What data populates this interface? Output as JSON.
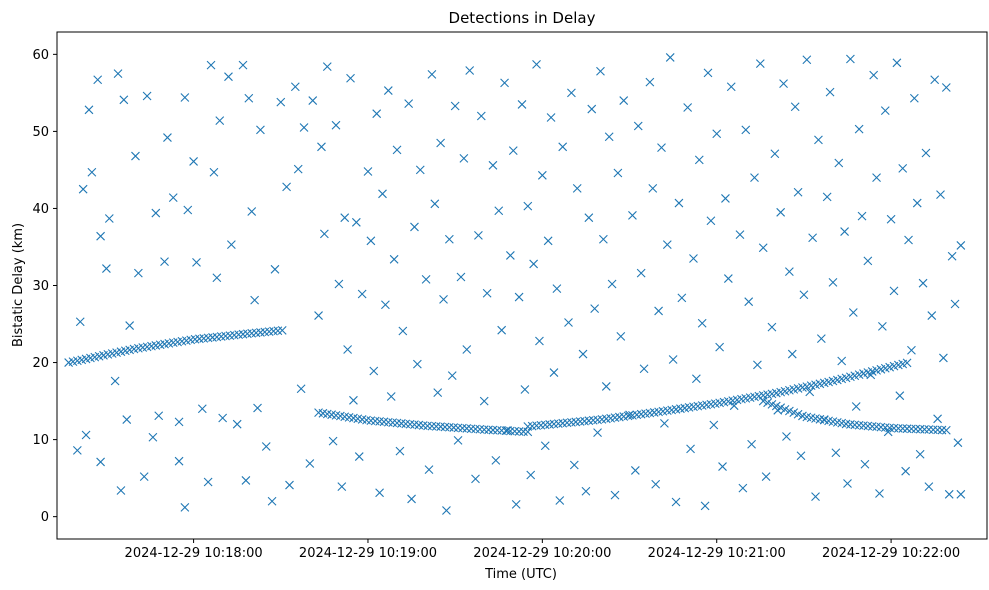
{
  "chart_data": {
    "type": "scatter",
    "title": "Detections in Delay",
    "xlabel": "Time (UTC)",
    "ylabel": "Bistatic Delay (km)",
    "marker": "x",
    "color": "#1f77b4",
    "grid": false,
    "x_ticks": [
      "2024-12-29 10:18:00",
      "2024-12-29 10:19:00",
      "2024-12-29 10:20:00",
      "2024-12-29 10:21:00",
      "2024-12-29 10:22:00"
    ],
    "y_ticks": [
      0,
      10,
      20,
      30,
      40,
      50,
      60
    ],
    "xlim": [
      "2024-12-29 10:17:13",
      "2024-12-29 10:22:33"
    ],
    "ylim": [
      -2.9,
      62.9
    ],
    "tracks": [
      {
        "x": [
          "2024-12-29 10:17:17",
          "2024-12-29 10:17:40",
          "2024-12-29 10:18:00",
          "2024-12-29 10:18:20",
          "2024-12-29 10:18:31"
        ],
        "y": [
          20.0,
          21.8,
          23.0,
          23.8,
          24.2
        ]
      },
      {
        "x": [
          "2024-12-29 10:18:43",
          "2024-12-29 10:19:00",
          "2024-12-29 10:19:20",
          "2024-12-29 10:19:40",
          "2024-12-29 10:19:55"
        ],
        "y": [
          13.5,
          12.5,
          11.8,
          11.3,
          11.0
        ]
      },
      {
        "x": [
          "2024-12-29 10:19:55",
          "2024-12-29 10:20:20",
          "2024-12-29 10:20:40",
          "2024-12-29 10:21:00",
          "2024-12-29 10:21:20",
          "2024-12-29 10:21:40",
          "2024-12-29 10:22:06"
        ],
        "y": [
          11.7,
          12.6,
          13.6,
          14.7,
          16.0,
          17.6,
          20.0
        ]
      },
      {
        "x": [
          "2024-12-29 10:21:16",
          "2024-12-29 10:21:30",
          "2024-12-29 10:21:45",
          "2024-12-29 10:22:00",
          "2024-12-29 10:22:20"
        ],
        "y": [
          15.0,
          13.0,
          12.0,
          11.5,
          11.2
        ]
      }
    ],
    "noise_points": [
      [
        "2024-12-29 10:17:20",
        8.6
      ],
      [
        "2024-12-29 10:17:21",
        25.3
      ],
      [
        "2024-12-29 10:17:22",
        42.5
      ],
      [
        "2024-12-29 10:17:23",
        10.6
      ],
      [
        "2024-12-29 10:17:24",
        52.8
      ],
      [
        "2024-12-29 10:17:25",
        44.7
      ],
      [
        "2024-12-29 10:17:27",
        56.7
      ],
      [
        "2024-12-29 10:17:28",
        36.4
      ],
      [
        "2024-12-29 10:17:28",
        7.1
      ],
      [
        "2024-12-29 10:17:30",
        32.2
      ],
      [
        "2024-12-29 10:17:31",
        38.7
      ],
      [
        "2024-12-29 10:17:33",
        17.6
      ],
      [
        "2024-12-29 10:17:34",
        57.5
      ],
      [
        "2024-12-29 10:17:35",
        3.4
      ],
      [
        "2024-12-29 10:17:36",
        54.1
      ],
      [
        "2024-12-29 10:17:37",
        12.6
      ],
      [
        "2024-12-29 10:17:38",
        24.8
      ],
      [
        "2024-12-29 10:17:40",
        46.8
      ],
      [
        "2024-12-29 10:17:41",
        31.6
      ],
      [
        "2024-12-29 10:17:43",
        5.2
      ],
      [
        "2024-12-29 10:17:44",
        54.6
      ],
      [
        "2024-12-29 10:17:46",
        10.3
      ],
      [
        "2024-12-29 10:17:47",
        39.4
      ],
      [
        "2024-12-29 10:17:48",
        13.1
      ],
      [
        "2024-12-29 10:17:50",
        33.1
      ],
      [
        "2024-12-29 10:17:51",
        49.2
      ],
      [
        "2024-12-29 10:17:53",
        41.4
      ],
      [
        "2024-12-29 10:17:55",
        12.3
      ],
      [
        "2024-12-29 10:17:55",
        7.2
      ],
      [
        "2024-12-29 10:17:57",
        1.2
      ],
      [
        "2024-12-29 10:17:57",
        54.4
      ],
      [
        "2024-12-29 10:17:58",
        39.8
      ],
      [
        "2024-12-29 10:18:00",
        46.1
      ],
      [
        "2024-12-29 10:18:01",
        33.0
      ],
      [
        "2024-12-29 10:18:03",
        14.0
      ],
      [
        "2024-12-29 10:18:05",
        4.5
      ],
      [
        "2024-12-29 10:18:06",
        58.6
      ],
      [
        "2024-12-29 10:18:07",
        44.7
      ],
      [
        "2024-12-29 10:18:08",
        31.0
      ],
      [
        "2024-12-29 10:18:09",
        51.4
      ],
      [
        "2024-12-29 10:18:10",
        12.8
      ],
      [
        "2024-12-29 10:18:12",
        57.1
      ],
      [
        "2024-12-29 10:18:13",
        35.3
      ],
      [
        "2024-12-29 10:18:15",
        12.0
      ],
      [
        "2024-12-29 10:18:17",
        58.6
      ],
      [
        "2024-12-29 10:18:18",
        4.7
      ],
      [
        "2024-12-29 10:18:19",
        54.3
      ],
      [
        "2024-12-29 10:18:20",
        39.6
      ],
      [
        "2024-12-29 10:18:21",
        28.1
      ],
      [
        "2024-12-29 10:18:22",
        14.1
      ],
      [
        "2024-12-29 10:18:23",
        50.2
      ],
      [
        "2024-12-29 10:18:25",
        9.1
      ],
      [
        "2024-12-29 10:18:27",
        2.0
      ],
      [
        "2024-12-29 10:18:28",
        32.1
      ],
      [
        "2024-12-29 10:18:30",
        53.8
      ],
      [
        "2024-12-29 10:18:32",
        42.8
      ],
      [
        "2024-12-29 10:18:33",
        4.1
      ],
      [
        "2024-12-29 10:18:35",
        55.8
      ],
      [
        "2024-12-29 10:18:36",
        45.1
      ],
      [
        "2024-12-29 10:18:37",
        16.6
      ],
      [
        "2024-12-29 10:18:38",
        50.5
      ],
      [
        "2024-12-29 10:18:40",
        6.9
      ],
      [
        "2024-12-29 10:18:41",
        54.0
      ],
      [
        "2024-12-29 10:18:43",
        26.1
      ],
      [
        "2024-12-29 10:18:44",
        48.0
      ],
      [
        "2024-12-29 10:18:45",
        36.7
      ],
      [
        "2024-12-29 10:18:46",
        58.4
      ],
      [
        "2024-12-29 10:18:48",
        9.8
      ],
      [
        "2024-12-29 10:18:49",
        50.8
      ],
      [
        "2024-12-29 10:18:50",
        30.2
      ],
      [
        "2024-12-29 10:18:51",
        3.9
      ],
      [
        "2024-12-29 10:18:52",
        38.8
      ],
      [
        "2024-12-29 10:18:53",
        21.7
      ],
      [
        "2024-12-29 10:18:54",
        56.9
      ],
      [
        "2024-12-29 10:18:55",
        15.1
      ],
      [
        "2024-12-29 10:18:56",
        38.2
      ],
      [
        "2024-12-29 10:18:57",
        7.8
      ],
      [
        "2024-12-29 10:18:58",
        28.9
      ],
      [
        "2024-12-29 10:19:00",
        44.8
      ],
      [
        "2024-12-29 10:19:01",
        35.8
      ],
      [
        "2024-12-29 10:19:02",
        18.9
      ],
      [
        "2024-12-29 10:19:03",
        52.3
      ],
      [
        "2024-12-29 10:19:04",
        3.1
      ],
      [
        "2024-12-29 10:19:05",
        41.9
      ],
      [
        "2024-12-29 10:19:06",
        27.5
      ],
      [
        "2024-12-29 10:19:07",
        55.3
      ],
      [
        "2024-12-29 10:19:08",
        15.6
      ],
      [
        "2024-12-29 10:19:09",
        33.4
      ],
      [
        "2024-12-29 10:19:10",
        47.6
      ],
      [
        "2024-12-29 10:19:11",
        8.5
      ],
      [
        "2024-12-29 10:19:12",
        24.1
      ],
      [
        "2024-12-29 10:19:14",
        53.6
      ],
      [
        "2024-12-29 10:19:15",
        2.3
      ],
      [
        "2024-12-29 10:19:16",
        37.6
      ],
      [
        "2024-12-29 10:19:17",
        19.8
      ],
      [
        "2024-12-29 10:19:18",
        45.0
      ],
      [
        "2024-12-29 10:19:20",
        30.8
      ],
      [
        "2024-12-29 10:19:21",
        6.1
      ],
      [
        "2024-12-29 10:19:22",
        57.4
      ],
      [
        "2024-12-29 10:19:23",
        40.6
      ],
      [
        "2024-12-29 10:19:24",
        16.1
      ],
      [
        "2024-12-29 10:19:25",
        48.5
      ],
      [
        "2024-12-29 10:19:26",
        28.2
      ],
      [
        "2024-12-29 10:19:27",
        0.8
      ],
      [
        "2024-12-29 10:19:28",
        36.0
      ],
      [
        "2024-12-29 10:19:29",
        18.3
      ],
      [
        "2024-12-29 10:19:30",
        53.3
      ],
      [
        "2024-12-29 10:19:31",
        9.9
      ],
      [
        "2024-12-29 10:19:32",
        31.1
      ],
      [
        "2024-12-29 10:19:33",
        46.5
      ],
      [
        "2024-12-29 10:19:34",
        21.7
      ],
      [
        "2024-12-29 10:19:35",
        57.9
      ],
      [
        "2024-12-29 10:19:37",
        4.9
      ],
      [
        "2024-12-29 10:19:38",
        36.5
      ],
      [
        "2024-12-29 10:19:39",
        52.0
      ],
      [
        "2024-12-29 10:19:40",
        15.0
      ],
      [
        "2024-12-29 10:19:41",
        29.0
      ],
      [
        "2024-12-29 10:19:43",
        45.6
      ],
      [
        "2024-12-29 10:19:44",
        7.3
      ],
      [
        "2024-12-29 10:19:45",
        39.7
      ],
      [
        "2024-12-29 10:19:46",
        24.2
      ],
      [
        "2024-12-29 10:19:47",
        56.3
      ],
      [
        "2024-12-29 10:19:48",
        11.2
      ],
      [
        "2024-12-29 10:19:49",
        33.9
      ],
      [
        "2024-12-29 10:19:50",
        47.5
      ],
      [
        "2024-12-29 10:19:51",
        1.6
      ],
      [
        "2024-12-29 10:19:52",
        28.5
      ],
      [
        "2024-12-29 10:19:53",
        53.5
      ],
      [
        "2024-12-29 10:19:54",
        16.5
      ],
      [
        "2024-12-29 10:19:55",
        40.3
      ],
      [
        "2024-12-29 10:19:56",
        5.4
      ],
      [
        "2024-12-29 10:19:57",
        32.8
      ],
      [
        "2024-12-29 10:19:58",
        58.7
      ],
      [
        "2024-12-29 10:19:59",
        22.8
      ],
      [
        "2024-12-29 10:20:00",
        44.3
      ],
      [
        "2024-12-29 10:20:01",
        9.2
      ],
      [
        "2024-12-29 10:20:02",
        35.8
      ],
      [
        "2024-12-29 10:20:03",
        51.8
      ],
      [
        "2024-12-29 10:20:04",
        18.7
      ],
      [
        "2024-12-29 10:20:05",
        29.6
      ],
      [
        "2024-12-29 10:20:06",
        2.1
      ],
      [
        "2024-12-29 10:20:07",
        48.0
      ],
      [
        "2024-12-29 10:20:09",
        25.2
      ],
      [
        "2024-12-29 10:20:10",
        55.0
      ],
      [
        "2024-12-29 10:20:11",
        6.7
      ],
      [
        "2024-12-29 10:20:12",
        42.6
      ],
      [
        "2024-12-29 10:20:14",
        21.1
      ],
      [
        "2024-12-29 10:20:15",
        3.3
      ],
      [
        "2024-12-29 10:20:16",
        38.8
      ],
      [
        "2024-12-29 10:20:17",
        52.9
      ],
      [
        "2024-12-29 10:20:18",
        27.0
      ],
      [
        "2024-12-29 10:20:19",
        10.9
      ],
      [
        "2024-12-29 10:20:20",
        57.8
      ],
      [
        "2024-12-29 10:20:21",
        36.0
      ],
      [
        "2024-12-29 10:20:22",
        16.9
      ],
      [
        "2024-12-29 10:20:23",
        49.3
      ],
      [
        "2024-12-29 10:20:24",
        30.2
      ],
      [
        "2024-12-29 10:20:25",
        2.8
      ],
      [
        "2024-12-29 10:20:26",
        44.6
      ],
      [
        "2024-12-29 10:20:27",
        23.4
      ],
      [
        "2024-12-29 10:20:28",
        54.0
      ],
      [
        "2024-12-29 10:20:30",
        13.2
      ],
      [
        "2024-12-29 10:20:31",
        39.1
      ],
      [
        "2024-12-29 10:20:32",
        6.0
      ],
      [
        "2024-12-29 10:20:33",
        50.7
      ],
      [
        "2024-12-29 10:20:34",
        31.6
      ],
      [
        "2024-12-29 10:20:35",
        19.2
      ],
      [
        "2024-12-29 10:20:37",
        56.4
      ],
      [
        "2024-12-29 10:20:38",
        42.6
      ],
      [
        "2024-12-29 10:20:39",
        4.2
      ],
      [
        "2024-12-29 10:20:40",
        26.7
      ],
      [
        "2024-12-29 10:20:41",
        47.9
      ],
      [
        "2024-12-29 10:20:42",
        12.1
      ],
      [
        "2024-12-29 10:20:43",
        35.3
      ],
      [
        "2024-12-29 10:20:44",
        59.6
      ],
      [
        "2024-12-29 10:20:45",
        20.4
      ],
      [
        "2024-12-29 10:20:46",
        1.9
      ],
      [
        "2024-12-29 10:20:47",
        40.7
      ],
      [
        "2024-12-29 10:20:48",
        28.4
      ],
      [
        "2024-12-29 10:20:50",
        53.1
      ],
      [
        "2024-12-29 10:20:51",
        8.8
      ],
      [
        "2024-12-29 10:20:52",
        33.5
      ],
      [
        "2024-12-29 10:20:53",
        17.9
      ],
      [
        "2024-12-29 10:20:54",
        46.3
      ],
      [
        "2024-12-29 10:20:55",
        25.1
      ],
      [
        "2024-12-29 10:20:56",
        1.4
      ],
      [
        "2024-12-29 10:20:57",
        57.6
      ],
      [
        "2024-12-29 10:20:58",
        38.4
      ],
      [
        "2024-12-29 10:20:59",
        11.9
      ],
      [
        "2024-12-29 10:21:00",
        49.7
      ],
      [
        "2024-12-29 10:21:01",
        22.0
      ],
      [
        "2024-12-29 10:21:02",
        6.5
      ],
      [
        "2024-12-29 10:21:03",
        41.3
      ],
      [
        "2024-12-29 10:21:04",
        30.9
      ],
      [
        "2024-12-29 10:21:05",
        55.8
      ],
      [
        "2024-12-29 10:21:06",
        14.4
      ],
      [
        "2024-12-29 10:21:08",
        36.6
      ],
      [
        "2024-12-29 10:21:09",
        3.7
      ],
      [
        "2024-12-29 10:21:10",
        50.2
      ],
      [
        "2024-12-29 10:21:11",
        27.9
      ],
      [
        "2024-12-29 10:21:12",
        9.4
      ],
      [
        "2024-12-29 10:21:13",
        44.0
      ],
      [
        "2024-12-29 10:21:14",
        19.7
      ],
      [
        "2024-12-29 10:21:15",
        58.8
      ],
      [
        "2024-12-29 10:21:16",
        34.9
      ],
      [
        "2024-12-29 10:21:17",
        5.2
      ],
      [
        "2024-12-29 10:21:19",
        24.6
      ],
      [
        "2024-12-29 10:21:20",
        47.1
      ],
      [
        "2024-12-29 10:21:21",
        13.8
      ],
      [
        "2024-12-29 10:21:22",
        39.5
      ],
      [
        "2024-12-29 10:21:23",
        56.2
      ],
      [
        "2024-12-29 10:21:24",
        10.4
      ],
      [
        "2024-12-29 10:21:25",
        31.8
      ],
      [
        "2024-12-29 10:21:26",
        21.1
      ],
      [
        "2024-12-29 10:21:27",
        53.2
      ],
      [
        "2024-12-29 10:21:28",
        42.1
      ],
      [
        "2024-12-29 10:21:29",
        7.9
      ],
      [
        "2024-12-29 10:21:30",
        28.8
      ],
      [
        "2024-12-29 10:21:31",
        59.3
      ],
      [
        "2024-12-29 10:21:32",
        16.2
      ],
      [
        "2024-12-29 10:21:33",
        36.2
      ],
      [
        "2024-12-29 10:21:34",
        2.6
      ],
      [
        "2024-12-29 10:21:35",
        48.9
      ],
      [
        "2024-12-29 10:21:36",
        23.1
      ],
      [
        "2024-12-29 10:21:37",
        12.6
      ],
      [
        "2024-12-29 10:21:38",
        41.5
      ],
      [
        "2024-12-29 10:21:39",
        55.1
      ],
      [
        "2024-12-29 10:21:40",
        30.4
      ],
      [
        "2024-12-29 10:21:41",
        8.3
      ],
      [
        "2024-12-29 10:21:42",
        45.9
      ],
      [
        "2024-12-29 10:21:43",
        20.2
      ],
      [
        "2024-12-29 10:21:44",
        37.0
      ],
      [
        "2024-12-29 10:21:45",
        4.3
      ],
      [
        "2024-12-29 10:21:46",
        59.4
      ],
      [
        "2024-12-29 10:21:47",
        26.5
      ],
      [
        "2024-12-29 10:21:48",
        14.3
      ],
      [
        "2024-12-29 10:21:49",
        50.3
      ],
      [
        "2024-12-29 10:21:50",
        39.0
      ],
      [
        "2024-12-29 10:21:51",
        6.8
      ],
      [
        "2024-12-29 10:21:52",
        33.2
      ],
      [
        "2024-12-29 10:21:53",
        18.4
      ],
      [
        "2024-12-29 10:21:54",
        57.3
      ],
      [
        "2024-12-29 10:21:55",
        44.0
      ],
      [
        "2024-12-29 10:21:56",
        3.0
      ],
      [
        "2024-12-29 10:21:57",
        24.7
      ],
      [
        "2024-12-29 10:21:58",
        52.7
      ],
      [
        "2024-12-29 10:21:59",
        11.0
      ],
      [
        "2024-12-29 10:22:00",
        38.6
      ],
      [
        "2024-12-29 10:22:01",
        29.3
      ],
      [
        "2024-12-29 10:22:02",
        58.9
      ],
      [
        "2024-12-29 10:22:03",
        15.7
      ],
      [
        "2024-12-29 10:22:04",
        45.2
      ],
      [
        "2024-12-29 10:22:05",
        5.9
      ],
      [
        "2024-12-29 10:22:06",
        35.9
      ],
      [
        "2024-12-29 10:22:07",
        21.6
      ],
      [
        "2024-12-29 10:22:08",
        54.3
      ],
      [
        "2024-12-29 10:22:09",
        40.7
      ],
      [
        "2024-12-29 10:22:10",
        8.1
      ],
      [
        "2024-12-29 10:22:11",
        30.3
      ],
      [
        "2024-12-29 10:22:12",
        47.2
      ],
      [
        "2024-12-29 10:22:13",
        3.9
      ],
      [
        "2024-12-29 10:22:14",
        26.1
      ],
      [
        "2024-12-29 10:22:15",
        56.7
      ],
      [
        "2024-12-29 10:22:16",
        12.7
      ],
      [
        "2024-12-29 10:22:17",
        41.8
      ],
      [
        "2024-12-29 10:22:18",
        20.6
      ],
      [
        "2024-12-29 10:22:19",
        55.7
      ],
      [
        "2024-12-29 10:22:20",
        2.9
      ],
      [
        "2024-12-29 10:22:21",
        33.8
      ],
      [
        "2024-12-29 10:22:22",
        27.6
      ],
      [
        "2024-12-29 10:22:23",
        9.6
      ],
      [
        "2024-12-29 10:22:24",
        35.2
      ],
      [
        "2024-12-29 10:22:24",
        2.9
      ]
    ]
  }
}
